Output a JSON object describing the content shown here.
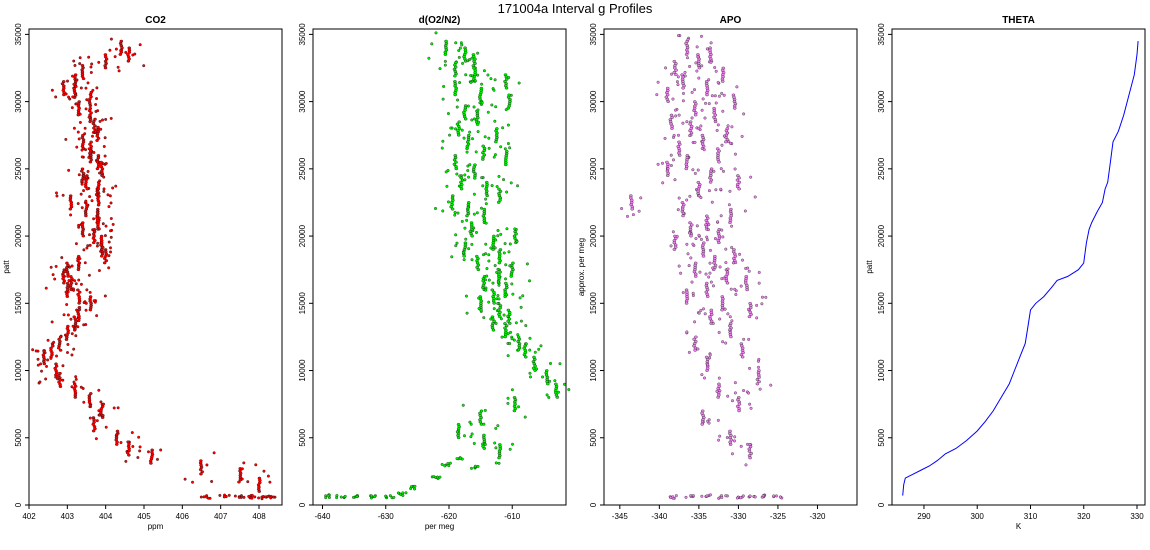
{
  "page": {
    "title": "171004a   Interval g Profiles"
  },
  "colors": {
    "co2": "#ff0000",
    "o2n2": "#00ee00",
    "apo": "#ee82ee",
    "theta": "#0000ff",
    "outline": "#000000"
  },
  "chart_data": [
    {
      "type": "scatter",
      "title": "CO2",
      "xlabel": "ppm",
      "ylabel": "patt",
      "xlim": [
        402,
        408.6
      ],
      "ylim": [
        0,
        35400
      ],
      "xticks": [
        402,
        403,
        404,
        405,
        406,
        407,
        408
      ],
      "yticks": [
        0,
        5000,
        10000,
        15000,
        20000,
        25000,
        30000,
        35000
      ],
      "series": [
        {
          "color": "#ff0000",
          "x": [
            404.4,
            404.6,
            404.0,
            403.4,
            403.2,
            402.9,
            403.2,
            403.6,
            403.3,
            403.6,
            403.7,
            403.8,
            403.4,
            403.6,
            403.6,
            403.8,
            403.9,
            403.4,
            403.5,
            403.8,
            403.8,
            403.1,
            403.5,
            403.8,
            403.8,
            403.4,
            403.7,
            403.9,
            403.9,
            404.0,
            403.3,
            403.0,
            402.9,
            403.1,
            403.0,
            403.3,
            403.6,
            403.3,
            403.2,
            403.0,
            402.8,
            402.6,
            402.4,
            402.7,
            402.8,
            403.2,
            403.6,
            403.9,
            403.7,
            404.3,
            404.6,
            405.2,
            406.5,
            407.5,
            408.0
          ],
          "y": [
            34000,
            33500,
            33000,
            32200,
            31500,
            31000,
            30800,
            30200,
            29500,
            29000,
            28200,
            27600,
            27000,
            26500,
            26000,
            25500,
            25000,
            24500,
            24000,
            23500,
            22800,
            22500,
            22000,
            21500,
            21000,
            20500,
            20000,
            19500,
            19000,
            18500,
            18000,
            17500,
            17000,
            16500,
            16000,
            15500,
            15000,
            14200,
            13500,
            12800,
            12000,
            11500,
            11000,
            10000,
            9300,
            8500,
            7800,
            7000,
            6000,
            5000,
            4200,
            3600,
            2800,
            2200,
            1500
          ],
          "extra_x": [
            406.6,
            407.1,
            407.5,
            407.8,
            408.1,
            408.3
          ],
          "extra_y": [
            600,
            650,
            600,
            600,
            620,
            600
          ]
        }
      ]
    },
    {
      "type": "scatter",
      "title": "d(O2/N2)",
      "xlabel": "per meg",
      "ylabel": "",
      "xlim": [
        -641.5,
        -601.5
      ],
      "ylim": [
        0,
        35400
      ],
      "xticks": [
        -640,
        -630,
        -620,
        -610
      ],
      "yticks": [
        0,
        5000,
        10000,
        15000,
        20000,
        25000,
        30000,
        35000
      ],
      "series": [
        {
          "color": "#00ee00",
          "x": [
            -620.5,
            -617.5,
            -616.0,
            -619.0,
            -616.0,
            -611.0,
            -619.0,
            -615.0,
            -610.5,
            -617.5,
            -615.5,
            -618.5,
            -612.5,
            -617.0,
            -614.5,
            -611.0,
            -619.0,
            -616.0,
            -618.0,
            -614.0,
            -612.0,
            -619.5,
            -617.0,
            -614.5,
            -609.5,
            -616.5,
            -613.0,
            -617.5,
            -612.0,
            -615.5,
            -610.0,
            -612.0,
            -614.5,
            -611.0,
            -613.0,
            -615.0,
            -612.0,
            -610.5,
            -613.0,
            -611.0,
            -609.0,
            -608.0,
            -606.5,
            -604.5,
            -603.0,
            -609.5,
            -615.0,
            -618.5,
            -614.5,
            -612.0
          ],
          "y": [
            34000,
            33500,
            33000,
            32400,
            32000,
            31500,
            31000,
            30500,
            30000,
            29200,
            28800,
            28000,
            27500,
            27000,
            26200,
            25800,
            25500,
            24800,
            24000,
            23500,
            23000,
            22500,
            22000,
            21500,
            20000,
            20500,
            19500,
            19000,
            18500,
            18000,
            17500,
            17000,
            16500,
            16000,
            15500,
            15000,
            14500,
            14000,
            13500,
            13000,
            12000,
            11500,
            10500,
            9500,
            8500,
            7500,
            6500,
            5500,
            4700,
            4000
          ],
          "extra_x": [
            -639.5,
            -637.0,
            -634.5,
            -632.0,
            -629.5,
            -627.5,
            -626.0,
            -622.0,
            -620.5,
            -618.5,
            -616.0
          ],
          "extra_y": [
            650,
            600,
            620,
            600,
            650,
            800,
            1300,
            2000,
            3000,
            3500,
            2800
          ]
        }
      ]
    },
    {
      "type": "scatter",
      "title": "APO",
      "xlabel": "",
      "ylabel": "approx. per meg",
      "xlim": [
        -347,
        -315
      ],
      "ylim": [
        0,
        35400
      ],
      "xticks": [
        -345,
        -340,
        -335,
        -330,
        -325,
        -320
      ],
      "yticks": [
        0,
        5000,
        10000,
        15000,
        20000,
        25000,
        30000,
        35000
      ],
      "series": [
        {
          "color": "#ee82ee",
          "x": [
            -336.5,
            -333.5,
            -335.0,
            -338.0,
            -332.0,
            -337.0,
            -334.0,
            -339.0,
            -330.5,
            -335.5,
            -333.0,
            -338.5,
            -336.0,
            -331.5,
            -334.5,
            -337.5,
            -332.5,
            -336.5,
            -339.0,
            -333.5,
            -330.0,
            -335.0,
            -343.5,
            -337.0,
            -331.0,
            -334.0,
            -336.0,
            -332.5,
            -338.0,
            -334.5,
            -330.5,
            -333.0,
            -335.5,
            -331.5,
            -329.0,
            -334.0,
            -336.5,
            -332.0,
            -328.5,
            -333.5,
            -331.0,
            -335.5,
            -329.5,
            -334.0,
            -327.5,
            -332.5,
            -330.0,
            -334.5,
            -331.0,
            -328.5
          ],
          "y": [
            34000,
            33500,
            33000,
            32500,
            32000,
            31500,
            31000,
            30500,
            30000,
            29500,
            29000,
            28500,
            28000,
            27500,
            27000,
            26500,
            26000,
            25500,
            25000,
            24500,
            24000,
            23500,
            22500,
            22000,
            21500,
            21000,
            20500,
            20000,
            19500,
            19000,
            18500,
            18000,
            17500,
            17000,
            16500,
            16000,
            15500,
            15000,
            14500,
            14000,
            13000,
            12000,
            11500,
            10500,
            9500,
            8500,
            7500,
            6500,
            5000,
            4000
          ],
          "extra_x": [
            -338.0,
            -336.0,
            -334.0,
            -332.0,
            -330.0,
            -328.5,
            -327.0,
            -325.0
          ],
          "extra_y": [
            600,
            600,
            650,
            600,
            620,
            600,
            650,
            600
          ]
        }
      ]
    },
    {
      "type": "line",
      "title": "THETA",
      "xlabel": "K",
      "ylabel": "patt",
      "xlim": [
        284,
        331.5
      ],
      "ylim": [
        0,
        35400
      ],
      "xticks": [
        290,
        300,
        310,
        320,
        330
      ],
      "yticks": [
        0,
        5000,
        10000,
        15000,
        20000,
        25000,
        30000,
        35000
      ],
      "series": [
        {
          "color": "#0000ff",
          "x": [
            286.0,
            286.2,
            286.5,
            288.0,
            289.5,
            291.0,
            292.5,
            294.0,
            296.0,
            298.0,
            300.0,
            301.5,
            303.0,
            304.5,
            306.0,
            307.0,
            308.0,
            309.0,
            309.5,
            310.0,
            311.0,
            312.5,
            314.0,
            315.0,
            317.0,
            319.0,
            320.0,
            320.5,
            321.0,
            321.5,
            322.5,
            323.5,
            324.0,
            324.5,
            325.0,
            325.5,
            326.5,
            327.5,
            328.5,
            329.5,
            330.0,
            330.2
          ],
          "y": [
            700,
            1500,
            2000,
            2300,
            2600,
            2900,
            3300,
            3800,
            4200,
            4800,
            5500,
            6200,
            7000,
            8000,
            9000,
            10000,
            11000,
            12000,
            13200,
            14500,
            15000,
            15500,
            16200,
            16700,
            17000,
            17500,
            18000,
            19500,
            20500,
            21000,
            21800,
            22500,
            23500,
            24000,
            25500,
            27000,
            27800,
            29000,
            30500,
            32000,
            33500,
            34500
          ]
        }
      ]
    }
  ]
}
